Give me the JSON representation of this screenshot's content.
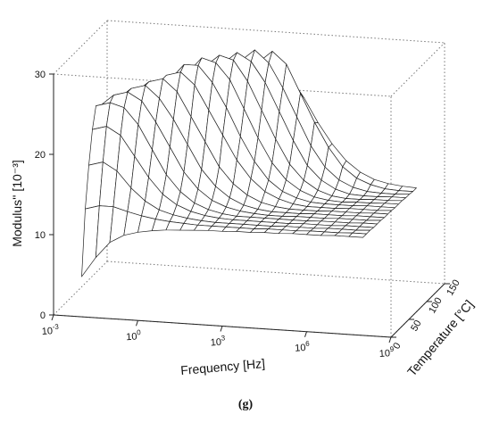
{
  "caption": "(g)",
  "chart_data": {
    "type": "surface-3d",
    "xlabel": "Frequency [Hz]",
    "ylabel": "Temperature [°C]",
    "zlabel": "Modulus'' [10⁻³]",
    "x_scale": "log",
    "x_ticks": [
      {
        "value": -3,
        "label_base": "10",
        "label_exp": "-3"
      },
      {
        "value": 0,
        "label_base": "10",
        "label_exp": "0"
      },
      {
        "value": 3,
        "label_base": "10",
        "label_exp": "3"
      },
      {
        "value": 6,
        "label_base": "10",
        "label_exp": "6"
      },
      {
        "value": 9,
        "label_base": "10",
        "label_exp": "9"
      }
    ],
    "y_ticks": [
      0,
      50,
      100,
      150
    ],
    "z_ticks": [
      0,
      10,
      20,
      30
    ],
    "xlim": [
      -3,
      9
    ],
    "ylim": [
      0,
      150
    ],
    "zlim": [
      0,
      30
    ],
    "grid": "dotted bounding box",
    "log_frequency_grid": [
      -2,
      -1.5,
      -1,
      -0.5,
      0,
      0.5,
      1,
      1.5,
      2,
      2.5,
      3,
      3.5,
      4,
      4.5,
      5,
      5.5,
      6,
      6.5,
      7,
      7.5,
      8
    ],
    "temperature_series": [
      {
        "temperature": 0,
        "values": [
          5.0,
          7.5,
          9.5,
          10.5,
          11.0,
          11.3,
          11.5,
          11.6,
          11.7,
          11.8,
          11.8,
          11.9,
          11.9,
          12.0,
          12.0,
          12.1,
          12.1,
          12.1,
          12.2,
          12.2,
          12.2
        ]
      },
      {
        "temperature": 10,
        "values": [
          13.0,
          13.5,
          13.5,
          13.0,
          12.6,
          12.3,
          12.1,
          12.0,
          11.9,
          11.9,
          11.9,
          11.9,
          11.9,
          12.0,
          12.0,
          12.0,
          12.1,
          12.1,
          12.1,
          12.2,
          12.2
        ]
      },
      {
        "temperature": 20,
        "values": [
          18.0,
          18.5,
          17.5,
          15.5,
          14.0,
          13.0,
          12.5,
          12.2,
          12.0,
          11.9,
          11.9,
          11.9,
          11.9,
          11.9,
          12.0,
          12.0,
          12.0,
          12.1,
          12.1,
          12.1,
          12.2
        ]
      },
      {
        "temperature": 30,
        "values": [
          22.0,
          22.5,
          21.5,
          19.0,
          16.5,
          14.5,
          13.3,
          12.6,
          12.2,
          12.0,
          11.9,
          11.9,
          11.9,
          11.9,
          11.9,
          12.0,
          12.0,
          12.0,
          12.1,
          12.1,
          12.1
        ]
      },
      {
        "temperature": 40,
        "values": [
          24.5,
          25.0,
          24.5,
          22.5,
          19.5,
          16.5,
          14.5,
          13.2,
          12.5,
          12.1,
          11.9,
          11.9,
          11.9,
          11.9,
          11.9,
          11.9,
          12.0,
          12.0,
          12.0,
          12.1,
          12.1
        ]
      },
      {
        "temperature": 50,
        "values": [
          24.0,
          25.5,
          26.0,
          25.0,
          22.5,
          19.5,
          16.5,
          14.5,
          13.2,
          12.5,
          12.1,
          11.9,
          11.8,
          11.8,
          11.9,
          11.9,
          11.9,
          12.0,
          12.0,
          12.0,
          12.1
        ]
      },
      {
        "temperature": 60,
        "values": [
          23.0,
          24.5,
          26.0,
          26.5,
          25.0,
          22.5,
          19.5,
          16.5,
          14.5,
          13.2,
          12.4,
          12.0,
          11.8,
          11.8,
          11.8,
          11.9,
          11.9,
          11.9,
          12.0,
          12.0,
          12.0
        ]
      },
      {
        "temperature": 70,
        "values": [
          22.0,
          23.5,
          25.0,
          26.5,
          27.0,
          25.5,
          22.5,
          19.5,
          16.5,
          14.5,
          13.2,
          12.4,
          12.0,
          11.8,
          11.8,
          11.8,
          11.9,
          11.9,
          11.9,
          12.0,
          12.0
        ]
      },
      {
        "temperature": 80,
        "values": [
          21.0,
          22.0,
          23.5,
          25.0,
          27.0,
          27.5,
          26.0,
          23.0,
          20.0,
          17.0,
          14.8,
          13.3,
          12.5,
          12.0,
          11.8,
          11.8,
          11.8,
          11.9,
          11.9,
          11.9,
          12.0
        ]
      },
      {
        "temperature": 90,
        "values": [
          20.0,
          21.0,
          22.5,
          24.0,
          26.0,
          28.0,
          28.0,
          26.0,
          23.0,
          19.5,
          16.5,
          14.3,
          13.0,
          12.3,
          11.9,
          11.8,
          11.8,
          11.8,
          11.9,
          11.9,
          11.9
        ]
      },
      {
        "temperature": 100,
        "values": [
          19.0,
          20.0,
          21.0,
          22.5,
          24.5,
          26.5,
          28.5,
          28.0,
          26.0,
          22.5,
          19.0,
          16.0,
          14.0,
          12.8,
          12.1,
          11.8,
          11.7,
          11.8,
          11.8,
          11.9,
          11.9
        ]
      },
      {
        "temperature": 110,
        "values": [
          18.0,
          19.0,
          20.0,
          21.0,
          23.0,
          25.0,
          27.0,
          28.5,
          28.0,
          25.5,
          22.0,
          18.5,
          15.5,
          13.6,
          12.5,
          11.9,
          11.7,
          11.7,
          11.8,
          11.8,
          11.9
        ]
      },
      {
        "temperature": 120,
        "values": [
          17.0,
          18.0,
          19.0,
          20.0,
          21.5,
          23.0,
          25.0,
          27.0,
          28.5,
          27.5,
          25.0,
          21.5,
          18.0,
          15.0,
          13.3,
          12.3,
          11.8,
          11.7,
          11.7,
          11.8,
          11.8
        ]
      },
      {
        "temperature": 130,
        "values": [
          16.0,
          17.0,
          18.0,
          19.0,
          20.0,
          21.5,
          23.0,
          25.0,
          27.0,
          28.5,
          27.0,
          24.0,
          20.5,
          17.0,
          14.5,
          13.0,
          12.2,
          11.8,
          11.7,
          11.7,
          11.8
        ]
      },
      {
        "temperature": 140,
        "values": [
          15.0,
          16.0,
          17.0,
          18.0,
          19.0,
          20.0,
          21.5,
          23.0,
          24.5,
          26.5,
          28.0,
          26.5,
          23.0,
          19.5,
          16.5,
          14.2,
          12.9,
          12.2,
          11.8,
          11.7,
          11.7
        ]
      },
      {
        "temperature": 150,
        "values": [
          14.0,
          15.0,
          16.0,
          17.0,
          18.0,
          19.0,
          20.0,
          21.0,
          22.5,
          24.0,
          25.5,
          24.5,
          22.0,
          19.0,
          16.5,
          14.5,
          13.2,
          12.4,
          12.0,
          11.8,
          11.7
        ]
      }
    ]
  }
}
